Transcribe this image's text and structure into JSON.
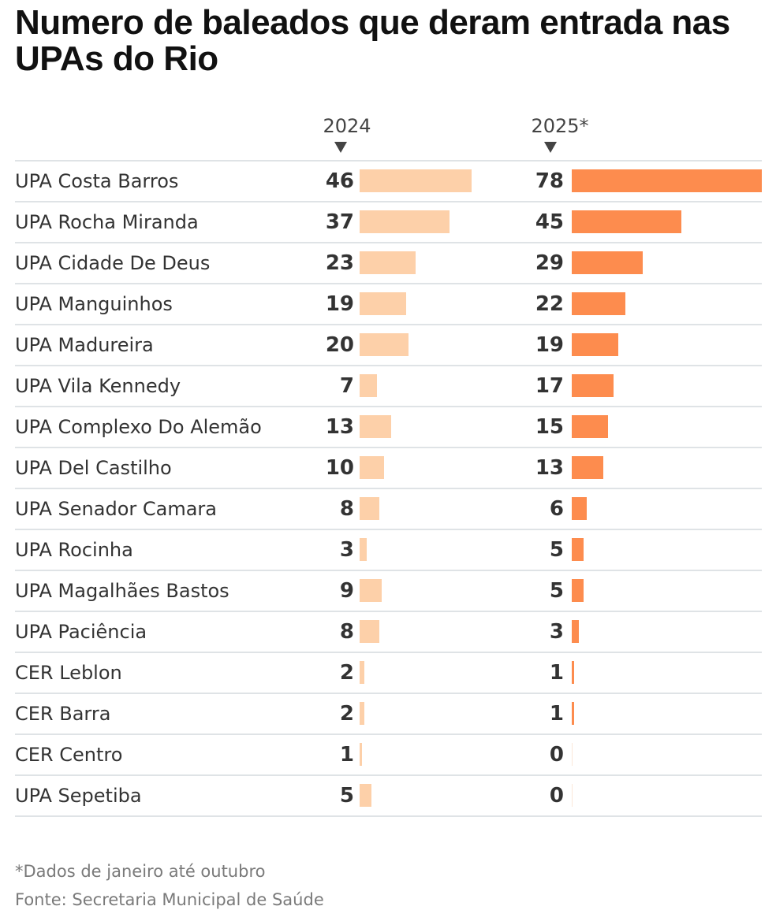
{
  "chart_data": {
    "type": "bar",
    "title": "Numero de baleados que deram entrada nas UPAs do Rio",
    "xlabel": "",
    "ylabel": "",
    "categories": [
      "UPA Costa Barros",
      "UPA Rocha Miranda",
      "UPA Cidade De Deus",
      "UPA Manguinhos",
      "UPA Madureira",
      "UPA Vila Kennedy",
      "UPA Complexo Do Alemão",
      "UPA Del Castilho",
      "UPA Senador Camara",
      "UPA Rocinha",
      "UPA Magalhães Bastos",
      "UPA Paciência",
      "CER Leblon",
      "CER Barra",
      "CER Centro",
      "UPA Sepetiba"
    ],
    "series": [
      {
        "name": "2024",
        "color": "#fdd0a9",
        "values": [
          46,
          37,
          23,
          19,
          20,
          7,
          13,
          10,
          8,
          3,
          9,
          8,
          2,
          2,
          1,
          5
        ]
      },
      {
        "name": "2025*",
        "color": "#fd8c4e",
        "values": [
          78,
          45,
          29,
          22,
          19,
          17,
          15,
          13,
          6,
          5,
          5,
          3,
          1,
          1,
          0,
          0
        ]
      }
    ],
    "xlim": [
      0,
      78
    ],
    "grid": false,
    "legend": "column headers above each bar group",
    "notes": [
      "*Dados de janeiro até outubro",
      "Fonte: Secretaria Municipal de Saúde"
    ]
  },
  "header": {
    "col_2024": "2024",
    "col_2025": "2025*",
    "arrow_icon": "down-triangle"
  }
}
